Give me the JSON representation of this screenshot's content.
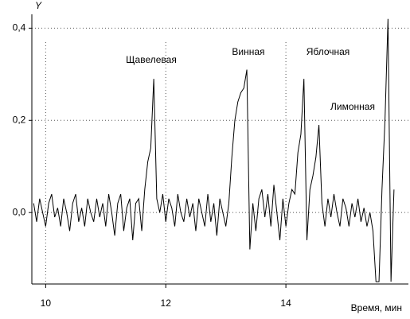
{
  "chart_data": {
    "type": "line",
    "y_label": "Y",
    "x_label": "Время, мин",
    "annotations": [
      "Щавелевая",
      "Винная",
      "Яблочная",
      "Лимонная"
    ],
    "xlim": [
      9.77,
      16.04
    ],
    "ylim": [
      -0.155,
      0.43
    ],
    "xticks": [
      10,
      12,
      14
    ],
    "yticks": [
      {
        "value": 0,
        "label": "0,0"
      },
      {
        "value": 0.2,
        "label": "0,2"
      },
      {
        "value": 0.4,
        "label": "0,4"
      }
    ],
    "grid": true,
    "x": [
      9.8,
      9.85,
      9.9,
      9.95,
      10,
      10.05,
      10.1,
      10.15,
      10.2,
      10.25,
      10.3,
      10.35,
      10.4,
      10.45,
      10.5,
      10.55,
      10.6,
      10.65,
      10.7,
      10.75,
      10.8,
      10.85,
      10.9,
      10.95,
      11,
      11.05,
      11.1,
      11.15,
      11.2,
      11.25,
      11.3,
      11.35,
      11.4,
      11.45,
      11.5,
      11.55,
      11.6,
      11.65,
      11.7,
      11.75,
      11.8,
      11.85,
      11.9,
      11.95,
      12,
      12.05,
      12.1,
      12.15,
      12.2,
      12.25,
      12.3,
      12.35,
      12.4,
      12.45,
      12.5,
      12.55,
      12.6,
      12.65,
      12.7,
      12.75,
      12.8,
      12.85,
      12.9,
      12.95,
      13,
      13.05,
      13.1,
      13.15,
      13.2,
      13.25,
      13.3,
      13.35,
      13.4,
      13.45,
      13.5,
      13.55,
      13.6,
      13.65,
      13.7,
      13.75,
      13.8,
      13.85,
      13.9,
      13.95,
      14,
      14.05,
      14.1,
      14.15,
      14.2,
      14.25,
      14.3,
      14.35,
      14.4,
      14.45,
      14.5,
      14.55,
      14.6,
      14.65,
      14.7,
      14.75,
      14.8,
      14.85,
      14.9,
      14.95,
      15,
      15.05,
      15.1,
      15.15,
      15.2,
      15.25,
      15.3,
      15.35,
      15.4,
      15.45,
      15.5,
      15.55,
      15.6,
      15.65,
      15.7,
      15.75,
      15.8
    ],
    "series": [
      {
        "color": "#000000",
        "values": [
          0.02,
          -0.02,
          0.03,
          0,
          -0.03,
          0.02,
          0.04,
          -0.01,
          0.01,
          -0.03,
          0.03,
          0,
          -0.04,
          0.02,
          0.04,
          -0.02,
          0.01,
          -0.03,
          0.03,
          0,
          -0.02,
          0.03,
          -0.01,
          0.02,
          -0.03,
          0.04,
          0,
          -0.05,
          0.02,
          0.04,
          -0.04,
          0.01,
          0.03,
          -0.06,
          0.02,
          0.03,
          -0.04,
          0.05,
          0.11,
          0.14,
          0.29,
          0.03,
          0,
          0.04,
          -0.02,
          0.03,
          0.01,
          -0.03,
          0.04,
          0,
          -0.02,
          0.03,
          -0.01,
          0.02,
          -0.04,
          0.03,
          0,
          -0.03,
          0.04,
          -0.02,
          0.02,
          -0.05,
          0.03,
          0,
          -0.03,
          0.02,
          0.12,
          0.2,
          0.24,
          0.26,
          0.27,
          0.31,
          -0.08,
          0.02,
          -0.04,
          0.03,
          0.05,
          -0.01,
          0.04,
          -0.03,
          0.06,
          0,
          -0.06,
          0.03,
          -0.03,
          0.02,
          0.05,
          0.04,
          0.13,
          0.17,
          0.29,
          -0.06,
          0.05,
          0.08,
          0.12,
          0.19,
          0.02,
          -0.03,
          0.03,
          -0.01,
          0.04,
          0,
          -0.03,
          0.03,
          0.01,
          -0.03,
          0.02,
          -0.01,
          0.03,
          -0.02,
          0.01,
          -0.03,
          0,
          -0.04,
          -0.15,
          -0.15,
          0.05,
          0.2,
          0.42,
          -0.15,
          0.05
        ]
      }
    ]
  }
}
